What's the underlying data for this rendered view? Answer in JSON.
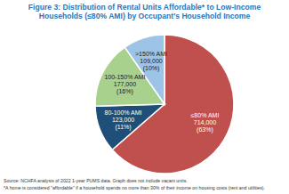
{
  "chart_data": {
    "type": "pie",
    "title": "Figure 3: Distribution of Rental Units Affordable* to Low-Income Households (≤80% AMI) by Occupant's Household Income",
    "categories": [
      "≤80% AMI",
      "80-100% AMI",
      "100-150% AMI",
      ">150% AMI"
    ],
    "values": [
      714000,
      123000,
      177000,
      109000
    ],
    "value_labels": [
      "714,000",
      "123,000",
      "177,000",
      "109,000"
    ],
    "percent_labels": [
      "(63%)",
      "(11%)",
      "(16%)",
      "(10%)"
    ],
    "colors": [
      "#c0504d",
      "#1f4e79",
      "#a9d18e",
      "#9dc3e6"
    ],
    "data_labels": true,
    "annotations": [
      "Source: NCHFA analysis of 2022 1-year PUMS data. Graph does not include vacant units.",
      "*A home is considered \"affordable\" if a household spends no more than 30% of their income on housing costs (rent and utilities)."
    ]
  }
}
